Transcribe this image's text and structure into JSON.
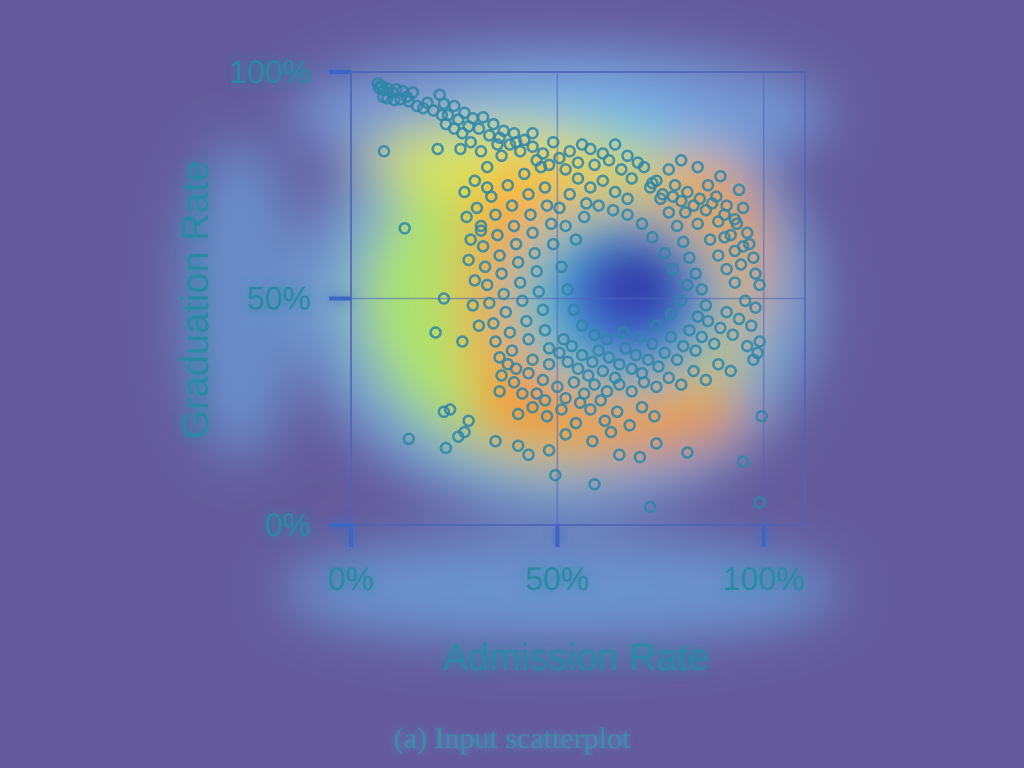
{
  "caption": "(a) Input scatterplot",
  "colors": {
    "background": "#645a9b",
    "frame": "#4f64b8",
    "point": "#2f86a8",
    "label": "#2c8aa6"
  },
  "chart_data": {
    "type": "scatter",
    "title": "",
    "xlabel": "Admission Rate",
    "ylabel": "Graduation Rate",
    "xlim": [
      0,
      110
    ],
    "ylim": [
      0,
      100
    ],
    "x_ticks": [
      0,
      50,
      100
    ],
    "y_ticks": [
      0,
      50,
      100
    ],
    "x_tick_labels": [
      "0%",
      "50%",
      "100%"
    ],
    "y_tick_labels": [
      "0%",
      "50%",
      "100%"
    ],
    "grid": true,
    "overlay": "density heatmap",
    "points": [
      [
        6.5,
        97.5
      ],
      [
        7.2,
        97.0
      ],
      [
        6.8,
        96.5
      ],
      [
        7.5,
        96.8
      ],
      [
        8.0,
        96.0
      ],
      [
        9.0,
        96.3
      ],
      [
        10.0,
        95.5
      ],
      [
        11.0,
        96.2
      ],
      [
        12.5,
        95.8
      ],
      [
        13.5,
        94.5
      ],
      [
        7.8,
        94.5
      ],
      [
        8.8,
        94.2
      ],
      [
        10.5,
        93.8
      ],
      [
        12.0,
        94.0
      ],
      [
        14.0,
        93.5
      ],
      [
        15.0,
        95.5
      ],
      [
        16.0,
        92.5
      ],
      [
        17.5,
        92.0
      ],
      [
        18.5,
        93.2
      ],
      [
        20.0,
        91.5
      ],
      [
        21.5,
        95.0
      ],
      [
        22.5,
        93.0
      ],
      [
        23.5,
        90.5
      ],
      [
        25.0,
        92.5
      ],
      [
        26.0,
        89.5
      ],
      [
        27.5,
        91.0
      ],
      [
        28.5,
        88.0
      ],
      [
        29.5,
        89.8
      ],
      [
        31.0,
        87.5
      ],
      [
        32.0,
        90.0
      ],
      [
        33.5,
        86.0
      ],
      [
        34.5,
        88.5
      ],
      [
        36.0,
        85.5
      ],
      [
        37.0,
        87.0
      ],
      [
        38.5,
        84.0
      ],
      [
        39.5,
        86.5
      ],
      [
        41.0,
        82.5
      ],
      [
        42.0,
        85.0
      ],
      [
        44.0,
        83.5
      ],
      [
        45.0,
        80.5
      ],
      [
        46.5,
        82.0
      ],
      [
        48.0,
        79.5
      ],
      [
        49.0,
        84.5
      ],
      [
        50.5,
        81.0
      ],
      [
        52.0,
        78.5
      ],
      [
        53.0,
        82.5
      ],
      [
        55.0,
        80.0
      ],
      [
        56.0,
        84.0
      ],
      [
        58.0,
        83.0
      ],
      [
        59.0,
        79.5
      ],
      [
        61.0,
        82.0
      ],
      [
        62.5,
        80.5
      ],
      [
        64.0,
        84.0
      ],
      [
        65.5,
        78.5
      ],
      [
        67.0,
        81.5
      ],
      [
        68.0,
        76.5
      ],
      [
        69.5,
        80.0
      ],
      [
        71.0,
        79.0
      ],
      [
        72.5,
        74.5
      ],
      [
        74.0,
        76.0
      ],
      [
        75.5,
        73.0
      ],
      [
        77.0,
        78.5
      ],
      [
        78.5,
        75.0
      ],
      [
        80.0,
        71.5
      ],
      [
        81.5,
        73.5
      ],
      [
        83.0,
        70.5
      ],
      [
        84.5,
        72.0
      ],
      [
        86.0,
        69.5
      ],
      [
        87.5,
        71.0
      ],
      [
        89.0,
        67.0
      ],
      [
        90.5,
        68.5
      ],
      [
        92.0,
        64.0
      ],
      [
        93.5,
        66.5
      ],
      [
        95.0,
        61.5
      ],
      [
        96.0,
        64.5
      ],
      [
        97.5,
        59.0
      ],
      [
        98.0,
        55.5
      ],
      [
        99.0,
        53.0
      ],
      [
        30.5,
        70.0
      ],
      [
        31.5,
        66.0
      ],
      [
        32.0,
        61.5
      ],
      [
        32.5,
        57.0
      ],
      [
        33.0,
        53.0
      ],
      [
        33.5,
        49.0
      ],
      [
        34.5,
        44.5
      ],
      [
        35.0,
        40.5
      ],
      [
        36.0,
        37.0
      ],
      [
        36.5,
        33.0
      ],
      [
        34.0,
        72.5
      ],
      [
        35.0,
        68.5
      ],
      [
        35.5,
        64.0
      ],
      [
        36.0,
        59.5
      ],
      [
        36.5,
        55.5
      ],
      [
        37.0,
        51.0
      ],
      [
        37.5,
        47.0
      ],
      [
        38.5,
        42.5
      ],
      [
        39.0,
        38.5
      ],
      [
        40.0,
        34.5
      ],
      [
        38.0,
        75.0
      ],
      [
        39.0,
        70.5
      ],
      [
        39.5,
        66.0
      ],
      [
        40.0,
        62.0
      ],
      [
        40.5,
        58.0
      ],
      [
        41.0,
        53.5
      ],
      [
        41.5,
        49.5
      ],
      [
        42.5,
        45.0
      ],
      [
        43.0,
        41.0
      ],
      [
        44.0,
        36.5
      ],
      [
        42.0,
        77.5
      ],
      [
        43.0,
        73.0
      ],
      [
        43.5,
        68.5
      ],
      [
        44.0,
        64.5
      ],
      [
        44.5,
        60.0
      ],
      [
        45.0,
        56.0
      ],
      [
        45.5,
        51.5
      ],
      [
        46.5,
        47.5
      ],
      [
        47.0,
        43.0
      ],
      [
        48.0,
        39.0
      ],
      [
        46.0,
        79.0
      ],
      [
        47.0,
        74.5
      ],
      [
        47.5,
        70.5
      ],
      [
        48.5,
        66.5
      ],
      [
        49.0,
        62.0
      ],
      [
        50.5,
        38.0
      ],
      [
        51.5,
        41.0
      ],
      [
        52.5,
        36.0
      ],
      [
        53.5,
        39.5
      ],
      [
        55.0,
        34.5
      ],
      [
        56.0,
        37.5
      ],
      [
        57.5,
        33.0
      ],
      [
        58.5,
        36.0
      ],
      [
        60.0,
        38.5
      ],
      [
        61.0,
        34.0
      ],
      [
        62.5,
        37.0
      ],
      [
        64.0,
        32.5
      ],
      [
        65.0,
        35.5
      ],
      [
        66.5,
        39.0
      ],
      [
        68.0,
        34.5
      ],
      [
        69.0,
        37.5
      ],
      [
        70.5,
        33.5
      ],
      [
        72.0,
        36.5
      ],
      [
        73.0,
        40.0
      ],
      [
        74.5,
        35.0
      ],
      [
        76.0,
        38.0
      ],
      [
        77.5,
        41.5
      ],
      [
        79.0,
        36.5
      ],
      [
        80.5,
        39.5
      ],
      [
        82.0,
        43.0
      ],
      [
        83.5,
        38.5
      ],
      [
        85.0,
        41.5
      ],
      [
        86.5,
        45.0
      ],
      [
        88.0,
        40.0
      ],
      [
        89.5,
        43.5
      ],
      [
        91.0,
        47.0
      ],
      [
        92.5,
        42.0
      ],
      [
        94.0,
        45.5
      ],
      [
        95.5,
        49.5
      ],
      [
        97.0,
        44.0
      ],
      [
        98.0,
        48.0
      ],
      [
        99.0,
        40.5
      ],
      [
        98.5,
        38.0
      ],
      [
        97.5,
        36.5
      ],
      [
        96.0,
        39.5
      ],
      [
        73.0,
        75.5
      ],
      [
        75.0,
        72.0
      ],
      [
        77.0,
        69.0
      ],
      [
        79.0,
        66.0
      ],
      [
        80.5,
        62.5
      ],
      [
        82.0,
        59.0
      ],
      [
        83.5,
        55.5
      ],
      [
        85.0,
        52.0
      ],
      [
        86.0,
        48.5
      ],
      [
        84.0,
        46.0
      ],
      [
        78.0,
        72.5
      ],
      [
        81.0,
        69.0
      ],
      [
        84.0,
        66.5
      ],
      [
        87.0,
        63.0
      ],
      [
        89.0,
        59.5
      ],
      [
        91.0,
        56.5
      ],
      [
        93.0,
        53.5
      ],
      [
        94.5,
        57.5
      ],
      [
        93.0,
        60.5
      ],
      [
        90.5,
        63.5
      ],
      [
        86.5,
        75.0
      ],
      [
        88.5,
        72.5
      ],
      [
        91.0,
        70.5
      ],
      [
        93.0,
        67.5
      ],
      [
        95.0,
        70.0
      ],
      [
        96.5,
        62.0
      ],
      [
        94.0,
        74.0
      ],
      [
        89.5,
        77.0
      ],
      [
        84.0,
        79.0
      ],
      [
        80.0,
        80.5
      ],
      [
        48.0,
        35.5
      ],
      [
        46.5,
        32.0
      ],
      [
        45.0,
        29.0
      ],
      [
        47.0,
        27.5
      ],
      [
        50.0,
        30.5
      ],
      [
        52.0,
        28.0
      ],
      [
        54.0,
        31.5
      ],
      [
        56.5,
        29.0
      ],
      [
        59.0,
        31.0
      ],
      [
        62.0,
        29.5
      ],
      [
        65.0,
        31.0
      ],
      [
        68.0,
        29.5
      ],
      [
        71.0,
        31.5
      ],
      [
        74.0,
        30.5
      ],
      [
        77.0,
        32.5
      ],
      [
        80.0,
        31.0
      ],
      [
        83.0,
        34.0
      ],
      [
        86.0,
        32.0
      ],
      [
        89.0,
        35.5
      ],
      [
        92.0,
        34.0
      ],
      [
        44.0,
        26.0
      ],
      [
        41.5,
        29.0
      ],
      [
        39.5,
        31.5
      ],
      [
        43.0,
        33.5
      ],
      [
        38.0,
        35.5
      ],
      [
        36.0,
        29.5
      ],
      [
        40.5,
        24.5
      ],
      [
        47.5,
        24.0
      ],
      [
        51.0,
        25.5
      ],
      [
        54.5,
        22.5
      ],
      [
        58.0,
        25.5
      ],
      [
        61.5,
        23.0
      ],
      [
        64.5,
        25.0
      ],
      [
        67.5,
        22.0
      ],
      [
        70.5,
        26.0
      ],
      [
        73.5,
        24.0
      ],
      [
        55.5,
        27.0
      ],
      [
        60.5,
        27.5
      ],
      [
        63.0,
        20.5
      ],
      [
        52.0,
        20.0
      ],
      [
        29.0,
        63.0
      ],
      [
        28.5,
        58.5
      ],
      [
        30.0,
        54.0
      ],
      [
        29.5,
        48.5
      ],
      [
        31.0,
        44.0
      ],
      [
        28.0,
        68.0
      ],
      [
        27.5,
        73.5
      ],
      [
        30.0,
        76.0
      ],
      [
        33.0,
        79.0
      ],
      [
        36.5,
        81.5
      ],
      [
        40.0,
        84.5
      ],
      [
        44.0,
        86.5
      ],
      [
        35.5,
        84.0
      ],
      [
        31.5,
        82.5
      ],
      [
        29.0,
        84.5
      ],
      [
        27.0,
        86.5
      ],
      [
        25.0,
        87.5
      ],
      [
        23.0,
        88.5
      ],
      [
        22.0,
        90.5
      ],
      [
        26.5,
        83.0
      ],
      [
        55.0,
        76.5
      ],
      [
        58.0,
        74.5
      ],
      [
        61.0,
        76.0
      ],
      [
        64.0,
        73.5
      ],
      [
        67.0,
        72.0
      ],
      [
        57.0,
        71.0
      ],
      [
        53.0,
        73.0
      ],
      [
        50.5,
        70.0
      ],
      [
        52.0,
        66.0
      ],
      [
        54.5,
        63.0
      ],
      [
        51.0,
        57.0
      ],
      [
        52.5,
        52.0
      ],
      [
        54.0,
        47.5
      ],
      [
        56.0,
        44.0
      ],
      [
        59.0,
        42.0
      ],
      [
        62.0,
        41.0
      ],
      [
        66.0,
        42.5
      ],
      [
        70.0,
        41.5
      ],
      [
        74.0,
        44.0
      ],
      [
        77.5,
        46.5
      ],
      [
        80.0,
        49.5
      ],
      [
        81.5,
        53.0
      ],
      [
        78.0,
        56.5
      ],
      [
        76.0,
        60.0
      ],
      [
        73.0,
        63.5
      ],
      [
        70.5,
        66.5
      ],
      [
        67.0,
        68.5
      ],
      [
        63.5,
        69.5
      ],
      [
        60.0,
        70.5
      ],
      [
        56.5,
        68.0
      ],
      [
        8.0,
        82.5
      ],
      [
        13.0,
        65.5
      ],
      [
        22.5,
        50.0
      ],
      [
        20.5,
        42.5
      ],
      [
        22.5,
        25.0
      ],
      [
        24.0,
        25.5
      ],
      [
        27.5,
        20.5
      ],
      [
        26.0,
        19.5
      ],
      [
        14.0,
        19.0
      ],
      [
        23.0,
        17.0
      ],
      [
        28.5,
        23.0
      ],
      [
        35.0,
        18.5
      ],
      [
        40.5,
        17.5
      ],
      [
        43.0,
        15.5
      ],
      [
        49.5,
        11.0
      ],
      [
        59.0,
        9.0
      ],
      [
        72.5,
        4.0
      ],
      [
        81.5,
        16.0
      ],
      [
        95.0,
        14.0
      ],
      [
        99.0,
        5.0
      ],
      [
        99.5,
        24.0
      ],
      [
        27.0,
        40.5
      ],
      [
        31.5,
        65.0
      ],
      [
        33.0,
        74.5
      ],
      [
        21.0,
        83.0
      ],
      [
        74.0,
        18.0
      ],
      [
        70.0,
        15.0
      ],
      [
        65.0,
        15.5
      ],
      [
        48.0,
        16.5
      ],
      [
        58.5,
        18.5
      ]
    ]
  }
}
